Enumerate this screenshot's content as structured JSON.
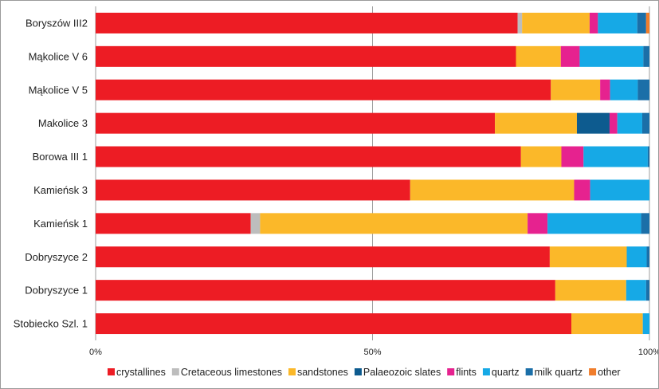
{
  "chart_data": {
    "type": "bar",
    "orientation": "horizontal",
    "stacked": "percent",
    "title": "",
    "xlabel": "",
    "ylabel": "",
    "xlim": [
      0,
      100
    ],
    "x_ticks": [
      "0%",
      "50%",
      "100%"
    ],
    "grid": true,
    "legend_position": "bottom",
    "categories": [
      "Boryszów III2",
      "Mąkolice V 6",
      "Mąkolice V 5",
      "Makolice 3",
      "Borowa III 1",
      "Kamieńsk 3",
      "Kamieńsk 1",
      "Dobryszyce 2",
      "Dobryszyce 1",
      "Stobiecko Szl. 1"
    ],
    "series": [
      {
        "name": "crystallines",
        "color": "#ed1c24",
        "values": [
          76.2,
          75.9,
          82.2,
          72.1,
          76.8,
          56.8,
          28.0,
          82.0,
          83.0,
          85.9
        ]
      },
      {
        "name": "Cretaceous limestones",
        "color": "#bdbdbd",
        "values": [
          0.8,
          0,
          0,
          0,
          0,
          0,
          1.7,
          0,
          0,
          0
        ]
      },
      {
        "name": "sandstones",
        "color": "#fbb829",
        "values": [
          12.2,
          8.1,
          8.9,
          14.8,
          7.3,
          29.6,
          48.3,
          13.9,
          12.8,
          12.9
        ]
      },
      {
        "name": "Palaeozoic slates",
        "color": "#0d5b8f",
        "values": [
          0,
          0,
          0,
          5.9,
          0,
          0,
          0,
          0,
          0,
          0
        ]
      },
      {
        "name": "flints",
        "color": "#e6228f",
        "values": [
          1.5,
          3.4,
          1.8,
          1.4,
          4.0,
          2.9,
          3.6,
          0,
          0,
          0
        ]
      },
      {
        "name": "quartz",
        "color": "#16a9e6",
        "values": [
          7.1,
          11.5,
          5.0,
          4.5,
          11.6,
          10.7,
          16.9,
          3.6,
          3.6,
          1.2
        ]
      },
      {
        "name": "milk quartz",
        "color": "#1b6fa8",
        "values": [
          1.6,
          1.1,
          2.1,
          1.3,
          0.3,
          0,
          1.5,
          0.5,
          0.6,
          0
        ]
      },
      {
        "name": "other",
        "color": "#f07d2b",
        "values": [
          0.6,
          0,
          0,
          0,
          0,
          0,
          0,
          0,
          0,
          0
        ]
      }
    ]
  }
}
